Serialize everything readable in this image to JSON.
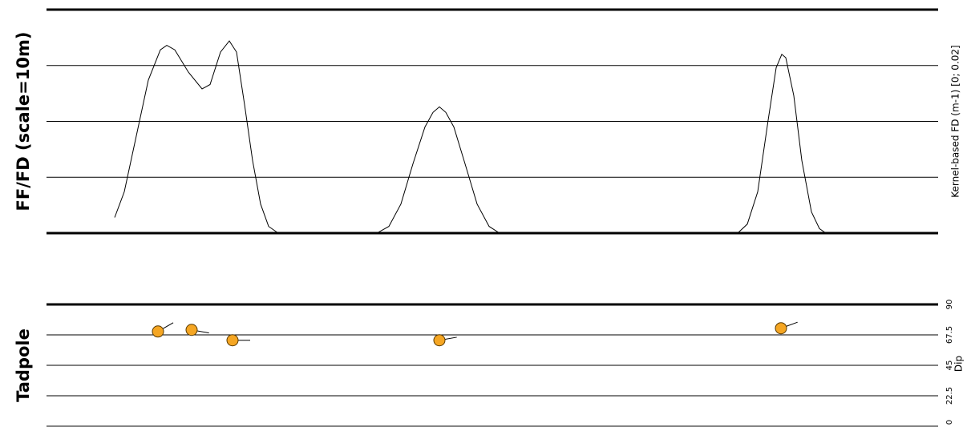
{
  "chart_data": [
    {
      "type": "line",
      "title": "FF/FD (scale=10m)",
      "y_label": "Kernel-based FD (m-1) [0; 0.02]",
      "x": [
        85,
        97,
        112,
        127,
        142,
        150,
        160,
        177,
        194,
        204,
        217,
        228,
        237,
        247,
        257,
        267,
        277,
        289,
        412,
        427,
        442,
        457,
        472,
        482,
        490,
        498,
        508,
        522,
        537,
        552,
        565,
        862,
        874,
        887,
        900,
        910,
        917,
        922,
        932,
        942,
        954,
        964,
        972
      ],
      "values": [
        0.0014,
        0.0037,
        0.0087,
        0.0137,
        0.0164,
        0.0168,
        0.0164,
        0.0144,
        0.0129,
        0.0133,
        0.0162,
        0.0172,
        0.0162,
        0.0115,
        0.0065,
        0.0026,
        0.0006,
        0,
        0,
        0.0006,
        0.0026,
        0.0062,
        0.0095,
        0.0108,
        0.0113,
        0.0108,
        0.0095,
        0.0062,
        0.0026,
        0.0006,
        0,
        0,
        0.0008,
        0.0037,
        0.0101,
        0.0148,
        0.016,
        0.0157,
        0.0123,
        0.0065,
        0.0019,
        0.0004,
        0
      ],
      "color": "#000000",
      "xlim": [
        0,
        1112
      ],
      "ylim": [
        0,
        0.02
      ],
      "yticks": [
        0,
        0.005,
        0.01,
        0.015,
        0.02
      ],
      "grid": true
    },
    {
      "type": "tadpole",
      "title": "Tadpole",
      "y_label": "Dip",
      "x": [
        139,
        181,
        232,
        490,
        916
      ],
      "values": [
        70,
        71.2,
        63.5,
        63.5,
        72.4
      ],
      "azimuth": [
        60,
        100,
        90,
        80,
        70
      ],
      "color": "#f5a623",
      "xlim": [
        0,
        1112
      ],
      "ylim": [
        0,
        90
      ],
      "yticks": [
        0,
        22.5,
        45,
        67.5,
        90
      ],
      "grid": true
    }
  ]
}
